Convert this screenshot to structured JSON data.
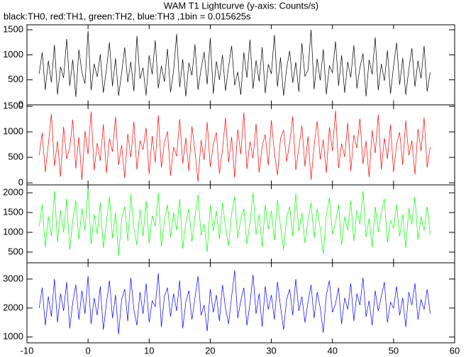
{
  "chart_data": {
    "type": "line",
    "title": "WAM T1 Lightcurve (y-axis: Counts/s)",
    "subtitle": "black:TH0, red:TH1, green:TH2, blue:TH3 ,1bin = 0.015625s",
    "xlim": [
      -10,
      60
    ],
    "xticks": [
      -10,
      0,
      10,
      20,
      30,
      40,
      50,
      60
    ],
    "x": [
      -8,
      -7.5,
      -7,
      -6.5,
      -6,
      -5.5,
      -5,
      -4.5,
      -4,
      -3.5,
      -3,
      -2.5,
      -2,
      -1.5,
      -1,
      -0.5,
      0,
      0.5,
      1,
      1.5,
      2,
      2.5,
      3,
      3.5,
      4,
      4.5,
      5,
      5.5,
      6,
      6.5,
      7,
      7.5,
      8,
      8.5,
      9,
      9.5,
      10,
      10.5,
      11,
      11.5,
      12,
      12.5,
      13,
      13.5,
      14,
      14.5,
      15,
      15.5,
      16,
      16.5,
      17,
      17.5,
      18,
      18.5,
      19,
      19.5,
      20,
      20.5,
      21,
      21.5,
      22,
      22.5,
      23,
      23.5,
      24,
      24.5,
      25,
      25.5,
      26,
      26.5,
      27,
      27.5,
      28,
      28.5,
      29,
      29.5,
      30,
      30.5,
      31,
      31.5,
      32,
      32.5,
      33,
      33.5,
      34,
      34.5,
      35,
      35.5,
      36,
      36.5,
      37,
      37.5,
      38,
      38.5,
      39,
      39.5,
      40,
      40.5,
      41,
      41.5,
      42,
      42.5,
      43,
      43.5,
      44,
      44.5,
      45,
      45.5,
      46,
      46.5,
      47,
      47.5,
      48,
      48.5,
      49,
      49.5,
      50,
      50.5,
      51,
      51.5,
      52,
      52.5,
      53,
      53.5,
      54,
      54.5,
      55,
      55.5,
      56
    ],
    "series": [
      {
        "color": "#000000",
        "ylim": [
          0,
          1600
        ],
        "yticks": [
          0,
          500,
          1000,
          1500
        ],
        "values": [
          620,
          1050,
          300,
          880,
          450,
          1200,
          210,
          760,
          540,
          1320,
          380,
          900,
          160,
          1100,
          650,
          420,
          1480,
          290,
          820,
          560,
          1010,
          240,
          700,
          1250,
          370,
          930,
          180,
          640,
          1150,
          450,
          860,
          270,
          1380,
          520,
          740,
          190,
          990,
          610,
          1290,
          330,
          780,
          460,
          1120,
          250,
          680,
          1420,
          350,
          910,
          170,
          840,
          590,
          1210,
          300,
          720,
          1060,
          410,
          1340,
          220,
          870,
          500,
          1000,
          280,
          760,
          1180,
          390,
          660,
          200,
          1050,
          540,
          1300,
          320,
          890,
          470,
          1150,
          230,
          810,
          620,
          1400,
          360,
          950,
          180,
          730,
          1080,
          440,
          850,
          260,
          1230,
          570,
          700,
          1500,
          310,
          920,
          490,
          1110,
          210,
          780,
          640,
          1270,
          380,
          990,
          240,
          860,
          550,
          1190,
          330,
          740,
          1030,
          170,
          900,
          610,
          1350,
          290,
          820,
          480,
          1090,
          220,
          770,
          1240,
          400,
          940,
          200,
          710,
          1130,
          360,
          880,
          530,
          1180,
          270,
          650
        ]
      },
      {
        "color": "#ff0000",
        "ylim": [
          -40,
          1530
        ],
        "yticks": [
          0,
          500,
          1000,
          1500
        ],
        "values": [
          540,
          980,
          210,
          760,
          1350,
          330,
          820,
          120,
          1100,
          470,
          690,
          1240,
          280,
          900,
          60,
          1020,
          560,
          1400,
          240,
          780,
          430,
          1150,
          190,
          870,
          610,
          1300,
          350,
          740,
          90,
          960,
          500,
          1200,
          260,
          830,
          650,
          1080,
          170,
          920,
          400,
          1330,
          300,
          790,
          1010,
          140,
          700,
          520,
          1250,
          380,
          880,
          230,
          1110,
          610,
          20,
          840,
          450,
          1190,
          310,
          760,
          990,
          180,
          640,
          1280,
          400,
          900,
          100,
          1050,
          560,
          1380,
          270,
          810,
          480,
          1160,
          200,
          720,
          950,
          340,
          1230,
          590,
          150,
          870,
          1040,
          420,
          780,
          1300,
          250,
          680,
          1120,
          320,
          910,
          60,
          730,
          1210,
          460,
          850,
          190,
          1090,
          620,
          1420,
          290,
          770,
          510,
          1180,
          230,
          940,
          680,
          1260,
          370,
          820,
          110,
          1030,
          580,
          1340,
          260,
          880,
          470,
          1140,
          210,
          760,
          990,
          350,
          1220,
          540,
          830,
          160,
          1060,
          620,
          1280,
          300,
          700
        ]
      },
      {
        "color": "#00ff00",
        "ylim": [
          230,
          2200
        ],
        "yticks": [
          500,
          1000,
          1500,
          2000
        ],
        "values": [
          1150,
          1700,
          620,
          1400,
          900,
          2050,
          750,
          1550,
          1000,
          1850,
          560,
          1300,
          1800,
          820,
          1600,
          1050,
          2100,
          700,
          1450,
          950,
          1750,
          600,
          1250,
          1900,
          850,
          1500,
          400,
          1350,
          1650,
          780,
          1950,
          1100,
          680,
          1580,
          900,
          1800,
          720,
          1420,
          1150,
          2000,
          640,
          1300,
          1700,
          880,
          1500,
          1050,
          1850,
          590,
          1250,
          1600,
          760,
          1400,
          1950,
          920,
          1200,
          500,
          1680,
          1030,
          1550,
          820,
          1750,
          1120,
          660,
          1480,
          1900,
          850,
          1350,
          1600,
          700,
          1250,
          2000,
          940,
          1450,
          620,
          1700,
          1080,
          1550,
          800,
          1820,
          1150,
          560,
          1380,
          1650,
          900,
          1980,
          1020,
          1500,
          720,
          1300,
          1750,
          850,
          1600,
          1100,
          450,
          1450,
          1880,
          960,
          1250,
          1700,
          680,
          1400,
          1050,
          1800,
          780,
          1550,
          1200,
          2050,
          880,
          1350,
          620,
          1650,
          1000,
          1500,
          1850,
          740,
          1300,
          1100,
          1700,
          900,
          1450,
          600,
          1600,
          1200,
          1900,
          820,
          1400,
          1050,
          1650,
          950
        ]
      },
      {
        "color": "#0000ff",
        "ylim": [
          800,
          3560
        ],
        "yticks": [
          1000,
          2000,
          3000
        ],
        "values": [
          2000,
          2700,
          1400,
          2400,
          1700,
          3000,
          1500,
          2500,
          1900,
          2900,
          1300,
          2200,
          2800,
          1600,
          2600,
          1800,
          3100,
          1450,
          2350,
          1750,
          2750,
          1250,
          2150,
          2950,
          1650,
          2450,
          1100,
          2300,
          2650,
          1550,
          3050,
          1950,
          1400,
          2550,
          1800,
          2850,
          1500,
          2250,
          2050,
          3200,
          1350,
          2400,
          2700,
          1700,
          2500,
          1900,
          2950,
          1300,
          2200,
          2600,
          1600,
          2350,
          3100,
          1750,
          2100,
          1200,
          2650,
          1850,
          2450,
          1550,
          2800,
          2000,
          1450,
          2400,
          3300,
          1650,
          2250,
          2700,
          1400,
          2150,
          3150,
          1800,
          2500,
          1350,
          2750,
          1950,
          2450,
          1600,
          2900,
          2050,
          1250,
          2300,
          2650,
          1750,
          3000,
          1900,
          2400,
          1500,
          2200,
          2800,
          1650,
          2550,
          2000,
          1150,
          2450,
          2950,
          1850,
          2150,
          2700,
          1450,
          2350,
          1950,
          2850,
          1550,
          2500,
          2100,
          3050,
          1700,
          2250,
          1400,
          2600,
          1900,
          2400,
          2900,
          1500,
          2200,
          2000,
          2750,
          1750,
          2350,
          1350,
          2550,
          2100,
          2850,
          1600,
          2300,
          1950,
          2650,
          1800
        ]
      }
    ]
  }
}
